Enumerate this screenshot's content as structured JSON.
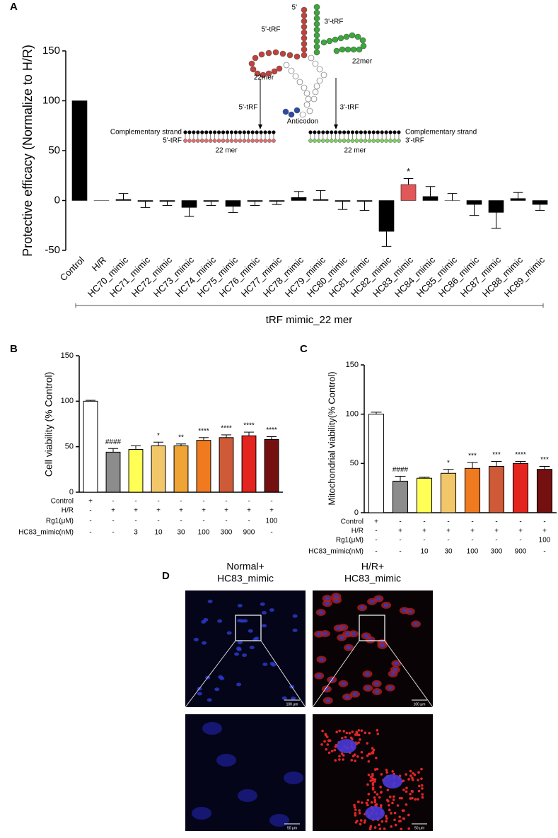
{
  "chart_data": [
    {
      "panel": "A",
      "type": "bar",
      "y_label": "Protective efficacy  (Normalize to H/R)",
      "x_group_label": "tRF mimic_22 mer",
      "categories": [
        "Control",
        "H/R",
        "HC70_mimic",
        "HC71_mimic",
        "HC72_mimic",
        "HC73_mimic",
        "HC74_mimic",
        "HC75_mimic",
        "HC76_mimic",
        "HC77_mimic",
        "HC78_mimic",
        "HC79_mimic",
        "HC80_mimic",
        "HC81_mimic",
        "HC82_mimic",
        "HC83_mimic",
        "HC84_mimic",
        "HC85_mimic",
        "HC86_mimic",
        "HC87_mimic",
        "HC88_mimic",
        "HC89_mimic"
      ],
      "values": [
        100,
        0,
        1,
        -1,
        -1,
        -7,
        -1,
        -6,
        -1,
        -1,
        3,
        1,
        -1,
        -1,
        -31,
        16,
        4,
        0,
        -4,
        -12,
        2,
        -4
      ],
      "errors": [
        null,
        null,
        6,
        6,
        4,
        9,
        4,
        6,
        4,
        3,
        6,
        9,
        8,
        9,
        15,
        6,
        10,
        7,
        11,
        16,
        6,
        6
      ],
      "colors": [
        "#000000",
        "#000000",
        "#000000",
        "#000000",
        "#000000",
        "#000000",
        "#000000",
        "#000000",
        "#000000",
        "#000000",
        "#000000",
        "#000000",
        "#000000",
        "#000000",
        "#000000",
        "#e05858",
        "#000000",
        "#000000",
        "#000000",
        "#000000",
        "#000000",
        "#000000"
      ],
      "significance": [
        null,
        null,
        null,
        null,
        null,
        null,
        null,
        null,
        null,
        null,
        null,
        null,
        null,
        null,
        null,
        "*",
        null,
        null,
        null,
        null,
        null,
        null
      ],
      "ylim": [
        -50,
        150
      ],
      "yticks": [
        -50,
        0,
        50,
        100,
        150
      ],
      "inset_labels": [
        "5'",
        "5'-tRF",
        "3'-tRF",
        "22mer",
        "22mer",
        "5'-tRF",
        "3'-tRF",
        "Anticodon",
        "Complementary strand",
        "5'-tRF",
        "22 mer",
        "Complementary strand",
        "3'-tRF",
        "22 mer"
      ]
    },
    {
      "panel": "B",
      "type": "bar",
      "y_label": "Cell viability (% Control)",
      "values": [
        100,
        44,
        47,
        51,
        51,
        57,
        60,
        62,
        58
      ],
      "errors": [
        1,
        4,
        4,
        4,
        2,
        3,
        3,
        4,
        3
      ],
      "colors": [
        "#ffffff",
        "#8c8c8c",
        "#ffff55",
        "#f2c76a",
        "#efa535",
        "#ef7a20",
        "#cf5a38",
        "#e3241f",
        "#741010"
      ],
      "significance": [
        null,
        "####",
        null,
        "*",
        "**",
        "****",
        "****",
        "****",
        "****"
      ],
      "ylim": [
        0,
        150
      ],
      "yticks": [
        0,
        50,
        100,
        150
      ],
      "table": [
        {
          "label": "Control",
          "cells": [
            "+",
            "-",
            "-",
            "-",
            "-",
            "-",
            "-",
            "-",
            "-"
          ]
        },
        {
          "label": "H/R",
          "cells": [
            "-",
            "+",
            "+",
            "+",
            "+",
            "+",
            "+",
            "+",
            "+"
          ]
        },
        {
          "label": "Rg1(μM)",
          "cells": [
            "-",
            "-",
            "-",
            "-",
            "-",
            "-",
            "-",
            "-",
            "100"
          ]
        },
        {
          "label": "HC83_mimic(nM)",
          "cells": [
            "-",
            "-",
            "3",
            "10",
            "30",
            "100",
            "300",
            "900",
            "-"
          ]
        }
      ]
    },
    {
      "panel": "C",
      "type": "bar",
      "y_label": "Mitochondrial viability(% Control)",
      "values": [
        100,
        32,
        35,
        40,
        45,
        47,
        50,
        44
      ],
      "errors": [
        2,
        5,
        1,
        4,
        6,
        5,
        2,
        3
      ],
      "colors": [
        "#ffffff",
        "#8c8c8c",
        "#ffff55",
        "#f2c76a",
        "#ef7a20",
        "#cf5a38",
        "#e3241f",
        "#741010"
      ],
      "significance": [
        null,
        "####",
        null,
        "*",
        "***",
        "***",
        "****",
        "***"
      ],
      "ylim": [
        0,
        150
      ],
      "yticks": [
        0,
        50,
        100,
        150
      ],
      "table": [
        {
          "label": "Control",
          "cells": [
            "+",
            "-",
            "-",
            "-",
            "-",
            "-",
            "-",
            "-"
          ]
        },
        {
          "label": "H/R",
          "cells": [
            "-",
            "+",
            "+",
            "+",
            "+",
            "+",
            "+",
            "+"
          ]
        },
        {
          "label": "Rg1(μM)",
          "cells": [
            "-",
            "-",
            "-",
            "-",
            "-",
            "-",
            "-",
            "100"
          ]
        },
        {
          "label": "HC83_mimic(nM)",
          "cells": [
            "-",
            "-",
            "10",
            "30",
            "100",
            "300",
            "900",
            "-"
          ]
        }
      ]
    }
  ],
  "figure_d": {
    "panel": "D",
    "columns": [
      [
        "Normal+",
        "HC83_mimic"
      ],
      [
        "H/R+",
        "HC83_mimic"
      ]
    ],
    "scale_bars": [
      "100 μm",
      "100 μm",
      "50 μm",
      "50 μm"
    ]
  }
}
